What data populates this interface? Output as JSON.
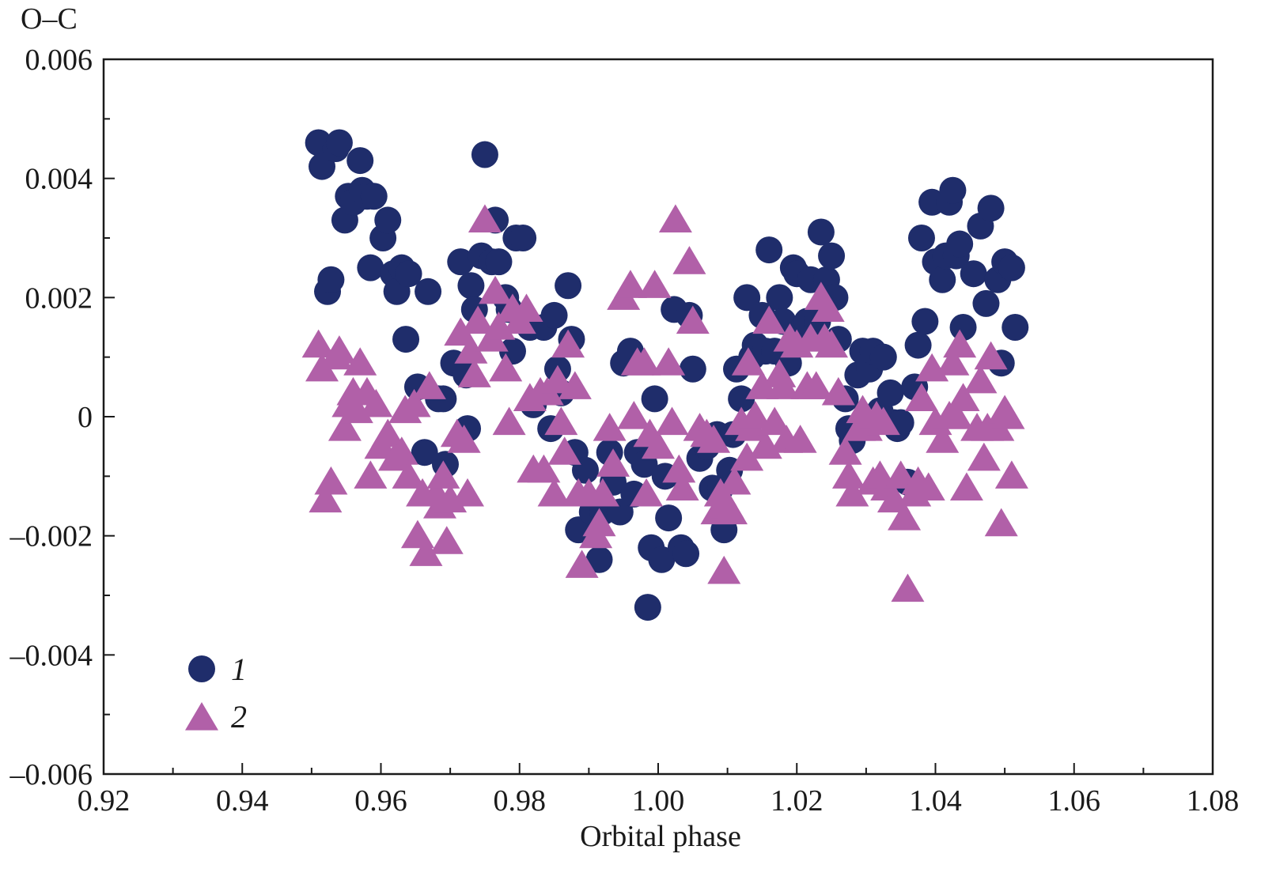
{
  "chart_data": {
    "type": "scatter",
    "title": "",
    "xlabel": "Orbital phase",
    "ylabel": "O–C",
    "xlim": [
      0.92,
      1.08
    ],
    "ylim": [
      -0.006,
      0.006
    ],
    "x_ticks": [
      "0.92",
      "0.94",
      "0.96",
      "0.98",
      "1.00",
      "1.02",
      "1.04",
      "1.06",
      "1.08"
    ],
    "y_ticks": [
      "0.006",
      "0.004",
      "0.002",
      "0",
      "–0.002",
      "–0.004",
      "–0.006"
    ],
    "legend_position": "bottom-left",
    "grid": false,
    "series": [
      {
        "name": "1",
        "marker": "circle",
        "color": "#1f2d6b",
        "points": [
          [
            0.951,
            0.0046
          ],
          [
            0.9515,
            0.0042
          ],
          [
            0.9523,
            0.0021
          ],
          [
            0.9528,
            0.0023
          ],
          [
            0.9535,
            0.0045
          ],
          [
            0.954,
            0.0046
          ],
          [
            0.9548,
            0.0033
          ],
          [
            0.9553,
            0.0037
          ],
          [
            0.956,
            0.0036
          ],
          [
            0.957,
            0.0043
          ],
          [
            0.9573,
            0.0038
          ],
          [
            0.958,
            0.0037
          ],
          [
            0.9585,
            0.0025
          ],
          [
            0.959,
            0.0037
          ],
          [
            0.9603,
            0.003
          ],
          [
            0.961,
            0.0033
          ],
          [
            0.9618,
            0.0024
          ],
          [
            0.9623,
            0.0021
          ],
          [
            0.963,
            0.0025
          ],
          [
            0.9636,
            0.0013
          ],
          [
            0.964,
            0.0024
          ],
          [
            0.9653,
            0.0005
          ],
          [
            0.9663,
            -0.0006
          ],
          [
            0.9668,
            0.0021
          ],
          [
            0.9683,
            0.0003
          ],
          [
            0.969,
            0.0003
          ],
          [
            0.9693,
            -0.0008
          ],
          [
            0.9705,
            0.0009
          ],
          [
            0.9715,
            0.0026
          ],
          [
            0.9723,
            0.0007
          ],
          [
            0.9725,
            -0.0002
          ],
          [
            0.973,
            0.0022
          ],
          [
            0.9735,
            0.0018
          ],
          [
            0.9745,
            0.0027
          ],
          [
            0.975,
            0.0044
          ],
          [
            0.976,
            0.0026
          ],
          [
            0.9765,
            0.0033
          ],
          [
            0.977,
            0.0026
          ],
          [
            0.978,
            0.002
          ],
          [
            0.9785,
            0.0018
          ],
          [
            0.979,
            0.0011
          ],
          [
            0.9795,
            0.003
          ],
          [
            0.9805,
            0.003
          ],
          [
            0.9815,
            0.0015
          ],
          [
            0.982,
            0.0002
          ],
          [
            0.9835,
            0.0015
          ],
          [
            0.9845,
            -0.0002
          ],
          [
            0.985,
            0.0017
          ],
          [
            0.9855,
            0.0008
          ],
          [
            0.986,
            0.0004
          ],
          [
            0.987,
            0.0022
          ],
          [
            0.9875,
            0.0013
          ],
          [
            0.988,
            -0.0006
          ],
          [
            0.9885,
            -0.0019
          ],
          [
            0.9895,
            -0.0009
          ],
          [
            0.9905,
            -0.0016
          ],
          [
            0.9915,
            -0.0024
          ],
          [
            0.992,
            -0.0016
          ],
          [
            0.993,
            -0.0006
          ],
          [
            0.9935,
            -0.0011
          ],
          [
            0.9945,
            -0.0016
          ],
          [
            0.995,
            0.0009
          ],
          [
            0.996,
            0.0011
          ],
          [
            0.9965,
            -0.0013
          ],
          [
            0.997,
            -0.0006
          ],
          [
            0.998,
            -0.0008
          ],
          [
            0.9985,
            -0.0032
          ],
          [
            0.999,
            -0.0022
          ],
          [
            0.9995,
            0.0003
          ],
          [
            1.0005,
            -0.0024
          ],
          [
            1.001,
            -0.001
          ],
          [
            1.0015,
            -0.0017
          ],
          [
            1.0023,
            0.0018
          ],
          [
            1.0033,
            -0.0022
          ],
          [
            1.004,
            -0.0023
          ],
          [
            1.0045,
            0.0017
          ],
          [
            1.005,
            0.0008
          ],
          [
            1.006,
            -0.0007
          ],
          [
            1.007,
            -0.0005
          ],
          [
            1.0078,
            -0.0012
          ],
          [
            1.0085,
            -0.0003
          ],
          [
            1.009,
            -0.0012
          ],
          [
            1.0095,
            -0.0019
          ],
          [
            1.0103,
            -0.0009
          ],
          [
            1.0108,
            -0.0003
          ],
          [
            1.0113,
            0.0008
          ],
          [
            1.012,
            0.0003
          ],
          [
            1.0128,
            0.002
          ],
          [
            1.0135,
            0.001
          ],
          [
            1.014,
            0.0012
          ],
          [
            1.015,
            0.0017
          ],
          [
            1.0155,
            0.0011
          ],
          [
            1.016,
            0.0028
          ],
          [
            1.0168,
            0.0011
          ],
          [
            1.0175,
            0.002
          ],
          [
            1.018,
            0.0016
          ],
          [
            1.0188,
            0.0009
          ],
          [
            1.0195,
            0.0025
          ],
          [
            1.02,
            0.0024
          ],
          [
            1.021,
            0.0015
          ],
          [
            1.0215,
            0.0016
          ],
          [
            1.022,
            0.0023
          ],
          [
            1.023,
            0.0016
          ],
          [
            1.0235,
            0.0031
          ],
          [
            1.0243,
            0.0023
          ],
          [
            1.025,
            0.0027
          ],
          [
            1.0255,
            0.002
          ],
          [
            1.026,
            0.0013
          ],
          [
            1.027,
            0.0003
          ],
          [
            1.0275,
            -0.0002
          ],
          [
            1.028,
            -0.0004
          ],
          [
            1.0288,
            0.0007
          ],
          [
            1.0295,
            0.0011
          ],
          [
            1.0305,
            0.0008
          ],
          [
            1.031,
            0.0011
          ],
          [
            1.032,
            0.0001
          ],
          [
            1.0325,
            0.001
          ],
          [
            1.0335,
            0.0004
          ],
          [
            1.034,
            -0.0001
          ],
          [
            1.0345,
            -0.0002
          ],
          [
            1.035,
            -0.0001
          ],
          [
            1.036,
            -0.0011
          ],
          [
            1.037,
            0.0005
          ],
          [
            1.0375,
            0.0012
          ],
          [
            1.038,
            0.003
          ],
          [
            1.0385,
            0.0016
          ],
          [
            1.0395,
            0.0036
          ],
          [
            1.04,
            0.0026
          ],
          [
            1.041,
            0.0023
          ],
          [
            1.0415,
            0.0027
          ],
          [
            1.042,
            0.0036
          ],
          [
            1.0425,
            0.0038
          ],
          [
            1.043,
            0.0027
          ],
          [
            1.0435,
            0.0029
          ],
          [
            1.044,
            0.0015
          ],
          [
            1.0455,
            0.0024
          ],
          [
            1.0465,
            0.0032
          ],
          [
            1.0473,
            0.0019
          ],
          [
            1.048,
            0.0035
          ],
          [
            1.049,
            0.0023
          ],
          [
            1.0495,
            0.0009
          ],
          [
            1.05,
            0.0026
          ],
          [
            1.051,
            0.0025
          ],
          [
            1.0515,
            0.0015
          ]
        ]
      },
      {
        "name": "2",
        "marker": "triangle",
        "color": "#b160a8",
        "points": [
          [
            0.951,
            0.0012
          ],
          [
            0.9515,
            0.0008
          ],
          [
            0.952,
            -0.0014
          ],
          [
            0.9528,
            -0.0011
          ],
          [
            0.9535,
            0.001
          ],
          [
            0.954,
            0.0011
          ],
          [
            0.9548,
            -0.0002
          ],
          [
            0.9553,
            0.0002
          ],
          [
            0.956,
            0.0004
          ],
          [
            0.9565,
            0.0001
          ],
          [
            0.957,
            0.0009
          ],
          [
            0.958,
            0.0004
          ],
          [
            0.9585,
            -0.001
          ],
          [
            0.9593,
            0.0002
          ],
          [
            0.96,
            -0.0005
          ],
          [
            0.961,
            -0.0003
          ],
          [
            0.962,
            -0.0007
          ],
          [
            0.963,
            -0.0006
          ],
          [
            0.9635,
            0.0001
          ],
          [
            0.964,
            -0.001
          ],
          [
            0.9648,
            0.0002
          ],
          [
            0.9653,
            -0.002
          ],
          [
            0.966,
            -0.0013
          ],
          [
            0.9665,
            -0.0023
          ],
          [
            0.967,
            0.0005
          ],
          [
            0.968,
            -0.0013
          ],
          [
            0.9685,
            -0.0015
          ],
          [
            0.969,
            -0.001
          ],
          [
            0.9695,
            -0.0021
          ],
          [
            0.97,
            -0.0014
          ],
          [
            0.971,
            -0.0003
          ],
          [
            0.9715,
            0.0014
          ],
          [
            0.972,
            -0.0004
          ],
          [
            0.9725,
            -0.0013
          ],
          [
            0.973,
            0.0011
          ],
          [
            0.9735,
            0.0007
          ],
          [
            0.974,
            0.0016
          ],
          [
            0.975,
            0.0033
          ],
          [
            0.976,
            0.0013
          ],
          [
            0.9765,
            0.0021
          ],
          [
            0.977,
            0.0015
          ],
          [
            0.978,
            0.0008
          ],
          [
            0.9785,
            -0.0001
          ],
          [
            0.979,
            0.0018
          ],
          [
            0.98,
            0.0016
          ],
          [
            0.981,
            0.0018
          ],
          [
            0.9815,
            0.0003
          ],
          [
            0.982,
            -0.0009
          ],
          [
            0.983,
            0.0004
          ],
          [
            0.9835,
            -0.0009
          ],
          [
            0.984,
            0.0004
          ],
          [
            0.985,
            -0.0013
          ],
          [
            0.9855,
            0.0006
          ],
          [
            0.986,
            -0.0001
          ],
          [
            0.9865,
            -0.0006
          ],
          [
            0.987,
            0.0012
          ],
          [
            0.988,
            0.0005
          ],
          [
            0.9885,
            -0.0013
          ],
          [
            0.989,
            -0.0025
          ],
          [
            0.99,
            -0.0013
          ],
          [
            0.991,
            -0.002
          ],
          [
            0.9915,
            -0.0018
          ],
          [
            0.992,
            -0.0013
          ],
          [
            0.993,
            -0.0002
          ],
          [
            0.9935,
            -0.0008
          ],
          [
            0.995,
            0.002
          ],
          [
            0.996,
            0.0022
          ],
          [
            0.9965,
            0.0
          ],
          [
            0.997,
            0.0009
          ],
          [
            0.998,
            0.0009
          ],
          [
            0.9983,
            -0.0013
          ],
          [
            0.9988,
            -0.0003
          ],
          [
            0.9995,
            0.0022
          ],
          [
            1.0,
            -0.0005
          ],
          [
            1.0015,
            0.0009
          ],
          [
            1.002,
            -0.0001
          ],
          [
            1.0025,
            0.0033
          ],
          [
            1.003,
            -0.0009
          ],
          [
            1.0035,
            -0.0012
          ],
          [
            1.0045,
            0.0026
          ],
          [
            1.005,
            0.0016
          ],
          [
            1.006,
            -0.0002
          ],
          [
            1.007,
            -0.0003
          ],
          [
            1.008,
            -0.0004
          ],
          [
            1.0085,
            -0.0016
          ],
          [
            1.009,
            -0.0013
          ],
          [
            1.0095,
            -0.0026
          ],
          [
            1.01,
            -0.0015
          ],
          [
            1.0105,
            -0.0016
          ],
          [
            1.011,
            -0.0011
          ],
          [
            1.012,
            -0.0001
          ],
          [
            1.0128,
            -0.0007
          ],
          [
            1.013,
            0.0009
          ],
          [
            1.0135,
            -0.0002
          ],
          [
            1.014,
            0.0
          ],
          [
            1.015,
            0.0005
          ],
          [
            1.0155,
            -0.0005
          ],
          [
            1.016,
            0.0016
          ],
          [
            1.0168,
            -0.0001
          ],
          [
            1.0175,
            0.0007
          ],
          [
            1.018,
            0.0005
          ],
          [
            1.0185,
            -0.0004
          ],
          [
            1.019,
            0.0013
          ],
          [
            1.02,
            0.0012
          ],
          [
            1.0205,
            -0.0004
          ],
          [
            1.0215,
            0.0005
          ],
          [
            1.022,
            0.0013
          ],
          [
            1.0228,
            0.0005
          ],
          [
            1.0235,
            0.002
          ],
          [
            1.024,
            0.0013
          ],
          [
            1.0245,
            0.0018
          ],
          [
            1.025,
            0.0012
          ],
          [
            1.026,
            0.0004
          ],
          [
            1.027,
            -0.0006
          ],
          [
            1.0275,
            -0.001
          ],
          [
            1.028,
            -0.0013
          ],
          [
            1.029,
            -0.0002
          ],
          [
            1.0295,
            0.0001
          ],
          [
            1.03,
            -0.0002
          ],
          [
            1.031,
            -0.0011
          ],
          [
            1.0315,
            0.0
          ],
          [
            1.032,
            -0.001
          ],
          [
            1.0325,
            -0.0001
          ],
          [
            1.033,
            -0.0012
          ],
          [
            1.034,
            -0.0014
          ],
          [
            1.035,
            -0.001
          ],
          [
            1.0355,
            -0.0017
          ],
          [
            1.036,
            -0.0029
          ],
          [
            1.037,
            -0.0013
          ],
          [
            1.0375,
            -0.0011
          ],
          [
            1.038,
            0.0003
          ],
          [
            1.039,
            -0.0012
          ],
          [
            1.0395,
            0.0008
          ],
          [
            1.04,
            -0.0001
          ],
          [
            1.041,
            -0.0004
          ],
          [
            1.042,
            0.0
          ],
          [
            1.0425,
            0.0009
          ],
          [
            1.043,
            0.0
          ],
          [
            1.0435,
            0.0012
          ],
          [
            1.044,
            0.0003
          ],
          [
            1.0445,
            -0.0012
          ],
          [
            1.046,
            -0.0002
          ],
          [
            1.0465,
            0.0006
          ],
          [
            1.047,
            -0.0007
          ],
          [
            1.0475,
            -0.0002
          ],
          [
            1.048,
            0.001
          ],
          [
            1.049,
            -0.0002
          ],
          [
            1.0495,
            -0.0018
          ],
          [
            1.05,
            0.0001
          ],
          [
            1.0505,
            0.0
          ],
          [
            1.051,
            -0.001
          ]
        ]
      }
    ]
  }
}
